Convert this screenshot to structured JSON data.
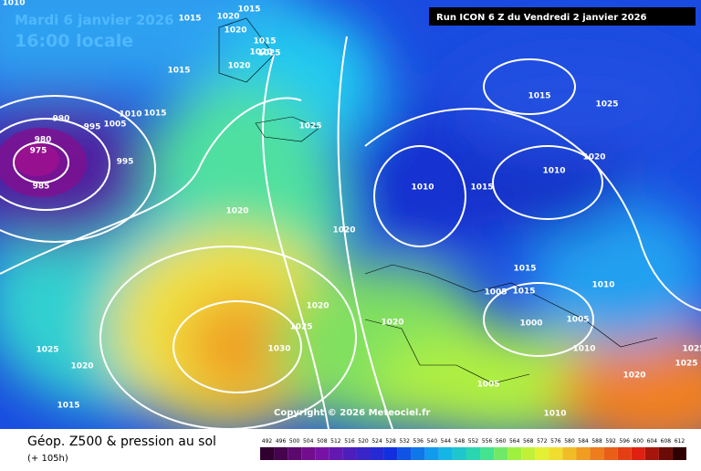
{
  "header": {
    "date": "Mardi 6 janvier 2026",
    "time": "16:00 locale",
    "run": "Run ICON 6 Z du Vendredi 2 janvier 2026"
  },
  "map": {
    "copyright": "Copyright © 2026 Meteociel.fr",
    "isobar_labels": [
      "1010",
      "1015",
      "1020",
      "1015",
      "1020",
      "1015",
      "1020",
      "1020",
      "1025",
      "1015",
      "990",
      "995",
      "1005",
      "1010",
      "1015",
      "980",
      "975",
      "995",
      "985",
      "1025",
      "1020",
      "1010",
      "1015",
      "1020",
      "1015",
      "1010",
      "1020",
      "1025",
      "1015",
      "1005",
      "1015",
      "1000",
      "1005",
      "1010",
      "1010",
      "1020",
      "1025",
      "1020",
      "1025",
      "1030",
      "1025",
      "1020",
      "1015",
      "1020",
      "1005",
      "1010",
      "1025"
    ]
  },
  "footer": {
    "title": "Géop. Z500 & pression au sol",
    "lead": "(+ 105h)"
  },
  "scale": {
    "labels": [
      492,
      496,
      500,
      504,
      508,
      512,
      516,
      520,
      524,
      528,
      532,
      536,
      540,
      544,
      548,
      552,
      556,
      560,
      564,
      568,
      572,
      576,
      580,
      584,
      588,
      592,
      596,
      600,
      604,
      608,
      612
    ]
  }
}
